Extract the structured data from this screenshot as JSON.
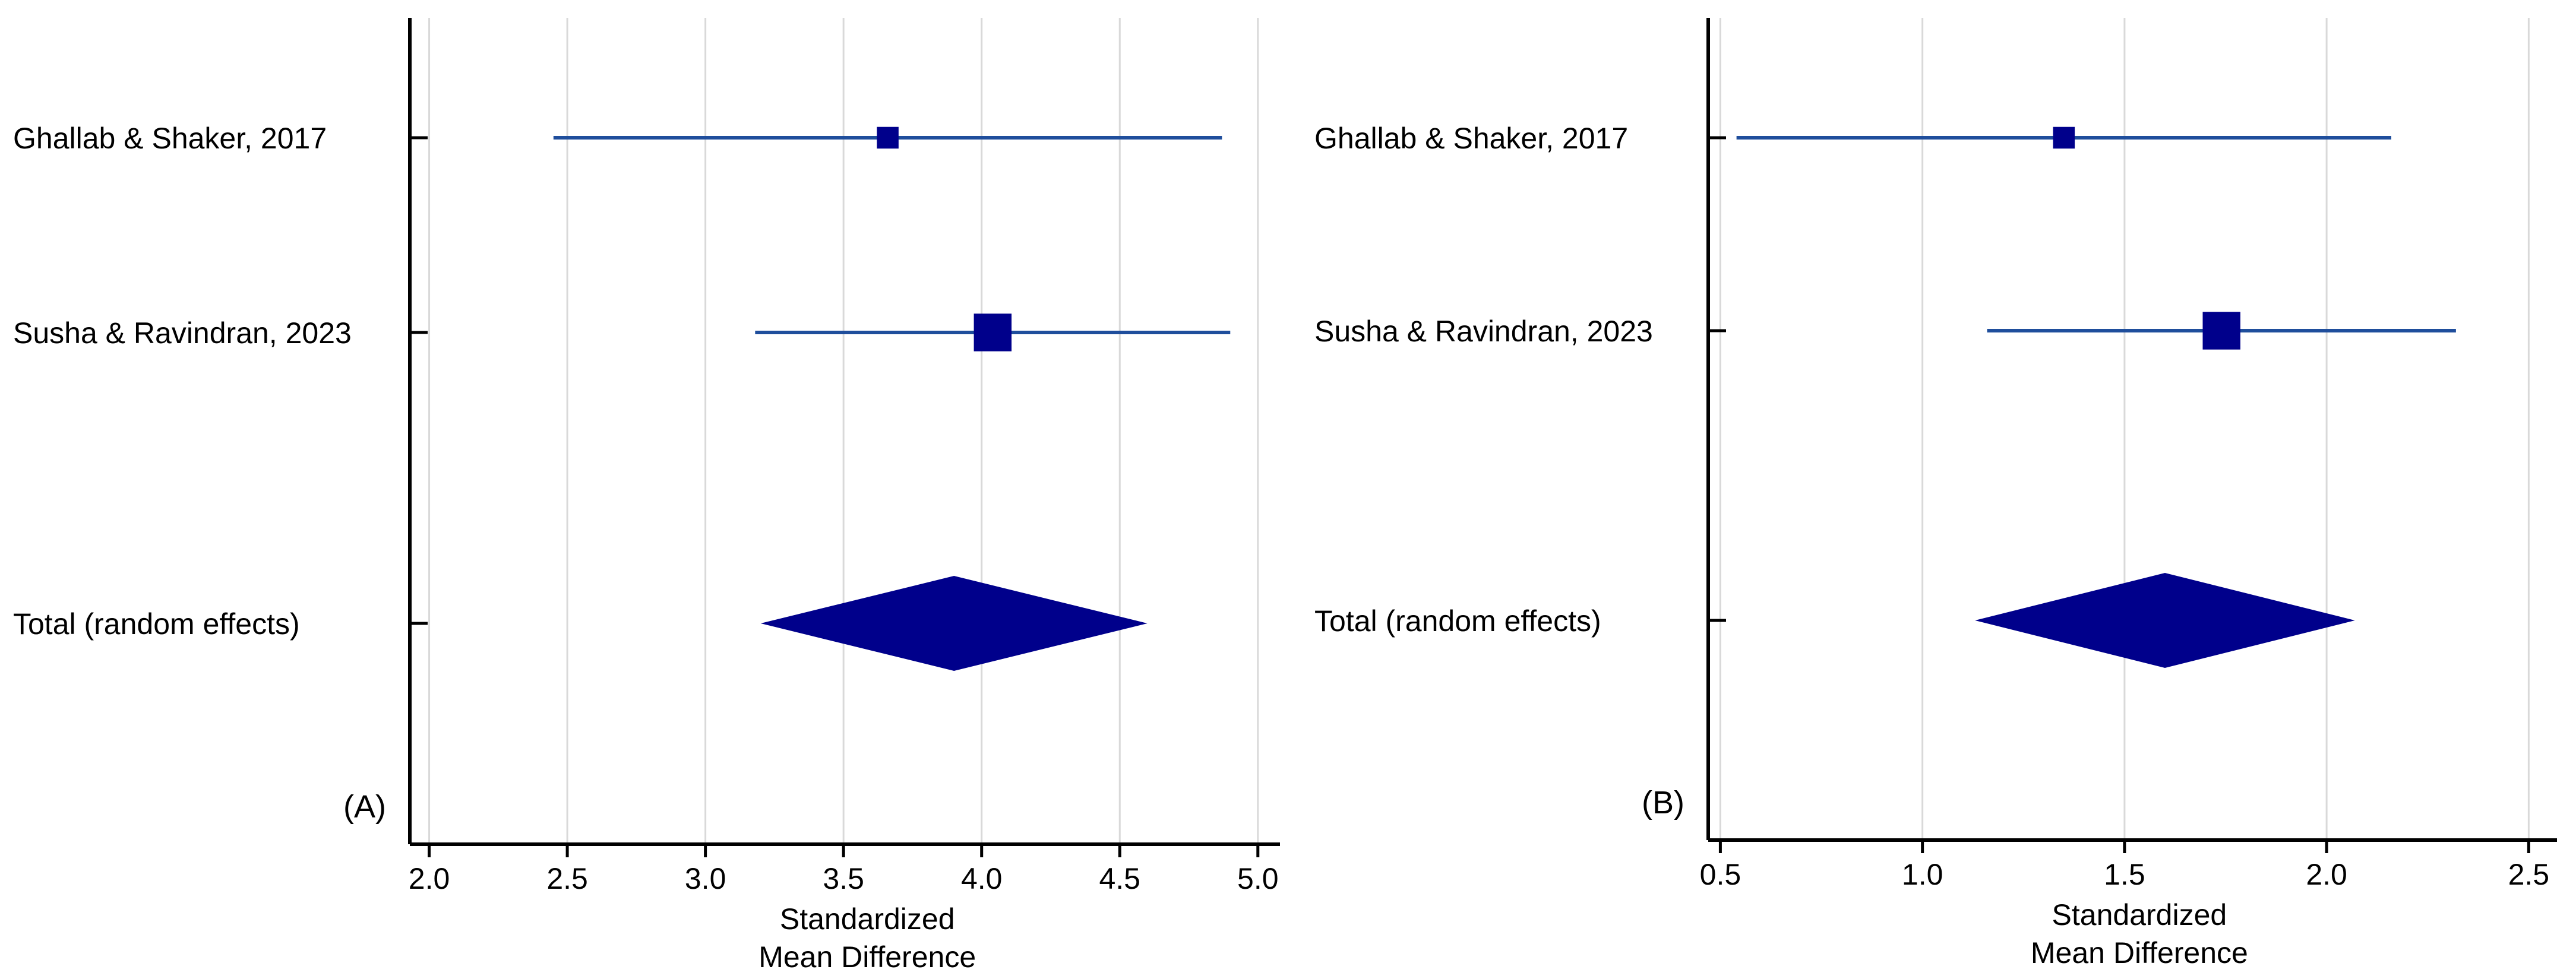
{
  "chart_data": [
    {
      "type": "forest",
      "panel_label": "(A)",
      "xlabel": [
        "Standardized",
        "Mean Difference"
      ],
      "xlim": [
        1.93,
        5.08
      ],
      "xticks": [
        2.0,
        2.5,
        3.0,
        3.5,
        4.0,
        4.5,
        5.0
      ],
      "xtick_labels": [
        "2.0",
        "2.5",
        "3.0",
        "3.5",
        "4.0",
        "4.5",
        "5.0"
      ],
      "grid": "vertical",
      "studies": [
        {
          "label": "Ghallab & Shaker, 2017",
          "estimate": 3.66,
          "ci_low": 2.45,
          "ci_high": 4.87,
          "weight": 0.22
        },
        {
          "label": "Susha & Ravindran, 2023",
          "estimate": 4.04,
          "ci_low": 3.18,
          "ci_high": 4.9,
          "weight": 0.78
        }
      ],
      "total": {
        "label": "Total (random effects)",
        "estimate": 3.9,
        "ci_low": 3.2,
        "ci_high": 4.6
      }
    },
    {
      "type": "forest",
      "panel_label": "(B)",
      "xlabel": [
        "Standardized",
        "Mean Difference"
      ],
      "xlim": [
        0.47,
        2.57
      ],
      "xticks": [
        0.5,
        1.0,
        1.5,
        2.0,
        2.5
      ],
      "xtick_labels": [
        "0.5",
        "1.0",
        "1.5",
        "2.0",
        "2.5"
      ],
      "grid": "vertical",
      "studies": [
        {
          "label": "Ghallab & Shaker, 2017",
          "estimate": 1.35,
          "ci_low": 0.54,
          "ci_high": 2.16,
          "weight": 0.22
        },
        {
          "label": "Susha & Ravindran, 2023",
          "estimate": 1.74,
          "ci_low": 1.16,
          "ci_high": 2.32,
          "weight": 0.78
        }
      ],
      "total": {
        "label": "Total (random effects)",
        "estimate": 1.6,
        "ci_low": 1.13,
        "ci_high": 2.07
      }
    }
  ],
  "style": {
    "marker_color": "#00008b",
    "line_color": "#1f4e9c"
  }
}
